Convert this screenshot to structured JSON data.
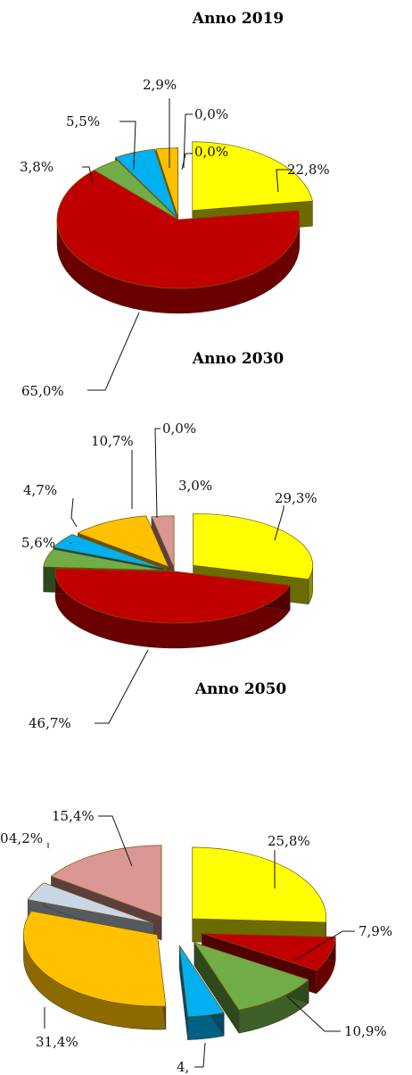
{
  "colors": {
    "yellow": "#ffff00",
    "red": "#c00000",
    "green": "#70ad47",
    "blue": "#00b0f0",
    "orange": "#ffc000",
    "grayblue": "#c9d6e6",
    "pink": "#d99694",
    "darkgreen": "#5a7a4a"
  },
  "chart_data": [
    {
      "type": "pie",
      "title": "Anno 2019",
      "slices": [
        {
          "label": "22,8%",
          "value": 22.8,
          "color": "#ffff00"
        },
        {
          "label": "65,0%",
          "value": 65.0,
          "color": "#c00000"
        },
        {
          "label": "3,8%",
          "value": 3.8,
          "color": "#70ad47"
        },
        {
          "label": "5,5%",
          "value": 5.5,
          "color": "#00b0f0"
        },
        {
          "label": "2,9%",
          "value": 2.9,
          "color": "#ffc000"
        },
        {
          "label": "0,0%",
          "value": 0.0,
          "color": "#c9d6e6"
        },
        {
          "label": "0,0%",
          "value": 0.0,
          "color": "#d99694"
        }
      ]
    },
    {
      "type": "pie",
      "title": "Anno 2030",
      "slices": [
        {
          "label": "29,3%",
          "value": 29.3,
          "color": "#ffff00"
        },
        {
          "label": "46,7%",
          "value": 46.7,
          "color": "#c00000"
        },
        {
          "label": "5,6%",
          "value": 5.6,
          "color": "#70ad47"
        },
        {
          "label": "4,7%",
          "value": 4.7,
          "color": "#00b0f0"
        },
        {
          "label": "10,7%",
          "value": 10.7,
          "color": "#ffc000"
        },
        {
          "label": "0,0%",
          "value": 0.0,
          "color": "#c9d6e6"
        },
        {
          "label": "3,0%",
          "value": 3.0,
          "color": "#d99694"
        }
      ]
    },
    {
      "type": "pie",
      "title": "Anno 2050",
      "slices": [
        {
          "label": "25,8%",
          "value": 25.8,
          "color": "#ffff00"
        },
        {
          "label": "7,9%",
          "value": 7.9,
          "color": "#c00000"
        },
        {
          "label": "10,9%",
          "value": 10.9,
          "color": "#70ad47"
        },
        {
          "label": "4,",
          "value": 4.4,
          "color": "#00b0f0"
        },
        {
          "label": "31,4%",
          "value": 31.4,
          "color": "#ffc000"
        },
        {
          "label": "4,2%",
          "value": 4.2,
          "color": "#c9d6e6"
        },
        {
          "label": "15,4%",
          "value": 15.4,
          "color": "#d99694"
        }
      ]
    }
  ],
  "stray_label": "0"
}
